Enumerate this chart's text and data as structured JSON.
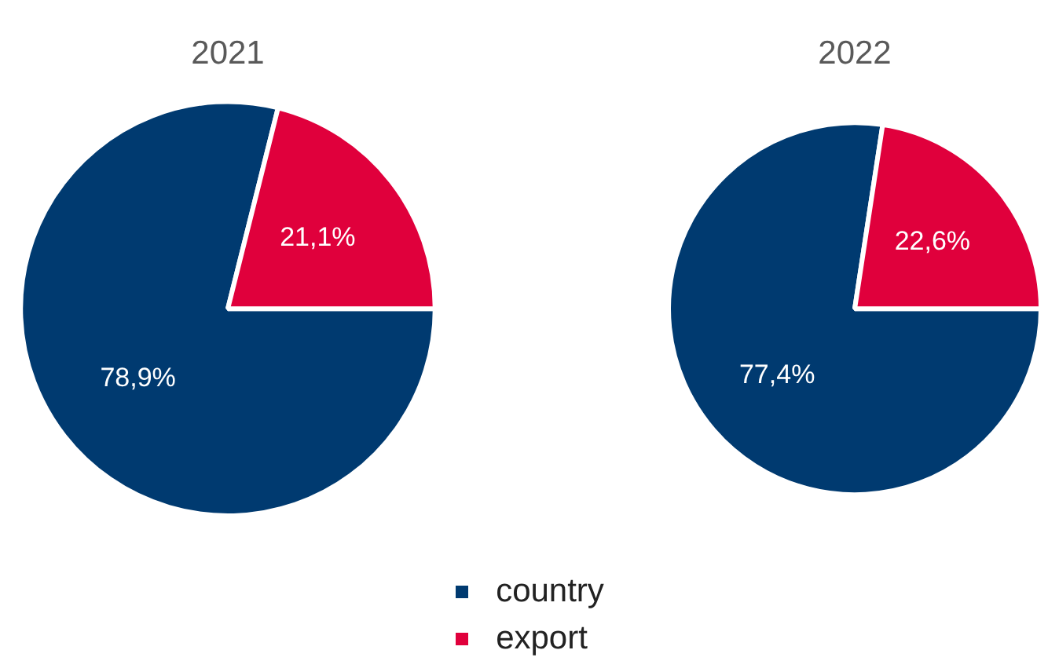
{
  "chart_data": [
    {
      "type": "pie",
      "title": "2021",
      "categories": [
        "country",
        "export"
      ],
      "values": [
        78.9,
        21.1
      ],
      "colors": [
        "#003a70",
        "#e0003c"
      ],
      "value_labels": [
        "78,9%",
        "21,1%"
      ],
      "legend": "bottom"
    },
    {
      "type": "pie",
      "title": "2022",
      "categories": [
        null,
        null
      ],
      "values": [
        77.4,
        22.6
      ],
      "colors": [
        "#003a70",
        "#e0003c"
      ],
      "value_labels": [
        "77,4%",
        "22,6%"
      ]
    }
  ]
}
